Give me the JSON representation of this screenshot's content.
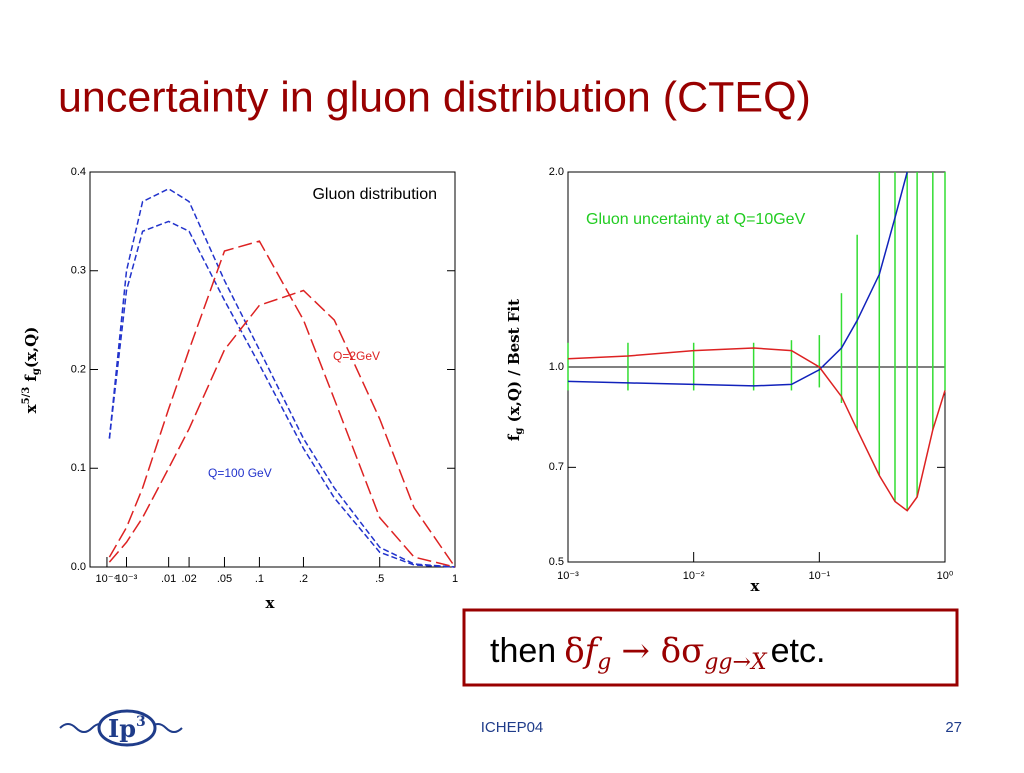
{
  "slide": {
    "title": "uncertainty in gluon distribution (CTEQ)",
    "box": {
      "then": "then",
      "delta1": "δ",
      "f": "f",
      "g": "g",
      "arrow": "→ δσ",
      "sub": "gg→X",
      "etc": "etc."
    },
    "logo": {
      "main": "Ip",
      "sup": "3"
    },
    "footer": "ICHEP04",
    "page": "27"
  },
  "chart_data": [
    {
      "type": "line",
      "xscale": "cuberoot",
      "xlabel": "x",
      "ylabel": [
        "x",
        "5/3",
        " f",
        "g",
        "(x,Q)"
      ],
      "annotations": [
        "Gluon distribution",
        "Q=2GeV",
        "Q=100 GeV"
      ],
      "x": [
        0.00015,
        0.001,
        0.003,
        0.01,
        0.02,
        0.05,
        0.1,
        0.2,
        0.3,
        0.5,
        0.7,
        1
      ],
      "xlim": [
        0,
        1
      ],
      "xticks": [
        {
          "value": 0.0001,
          "label": "10⁻⁴"
        },
        {
          "value": 0.001,
          "label": "10⁻³"
        },
        {
          "value": 0.01,
          "label": ".01"
        },
        {
          "value": 0.02,
          "label": ".02"
        },
        {
          "value": 0.05,
          "label": ".05"
        },
        {
          "value": 0.1,
          "label": ".1"
        },
        {
          "value": 0.2,
          "label": ".2"
        },
        {
          "value": 0.5,
          "label": ".5"
        },
        1
      ],
      "ylim": [
        0,
        0.4
      ],
      "yticks": [
        {
          "value": 0,
          "label": "0.0"
        },
        0.1,
        0.2,
        0.3,
        0.4
      ],
      "series": [
        {
          "name": "Q=100 GeV upper",
          "color": "#2233cc",
          "style": "dashed",
          "values": [
            0.13,
            0.3,
            0.37,
            0.383,
            0.37,
            0.29,
            0.22,
            0.13,
            0.08,
            0.02,
            0.003,
            0
          ]
        },
        {
          "name": "Q=100 GeV lower",
          "color": "#2233cc",
          "style": "dashed",
          "values": [
            0.13,
            0.28,
            0.34,
            0.35,
            0.34,
            0.27,
            0.205,
            0.12,
            0.07,
            0.015,
            0.002,
            0
          ]
        },
        {
          "name": "Q=2GeV upper",
          "color": "#dd2222",
          "style": "longdash",
          "values": [
            0.01,
            0.04,
            0.08,
            0.16,
            0.22,
            0.32,
            0.33,
            0.25,
            0.17,
            0.05,
            0.01,
            0
          ]
        },
        {
          "name": "Q=2GeV lower",
          "color": "#dd2222",
          "style": "longdash",
          "values": [
            0.005,
            0.025,
            0.05,
            0.1,
            0.14,
            0.22,
            0.265,
            0.28,
            0.25,
            0.15,
            0.06,
            0
          ]
        }
      ]
    },
    {
      "type": "line",
      "xscale": "log",
      "yscale": "log",
      "xlabel": "x",
      "ylabel": [
        "f",
        "g",
        " (x,Q) / Best Fit"
      ],
      "annotations": [
        "Gluon uncertainty at Q=10GeV"
      ],
      "x": [
        0.001,
        0.003,
        0.01,
        0.03,
        0.06,
        0.1,
        0.15,
        0.2,
        0.3,
        0.4,
        0.5,
        0.6,
        0.8,
        1
      ],
      "xlim": [
        0.001,
        1
      ],
      "xticks": [
        {
          "value": 0.001,
          "label": "10⁻³"
        },
        {
          "value": 0.01,
          "label": "10⁻²"
        },
        {
          "value": 0.1,
          "label": "10⁻¹"
        },
        {
          "value": 1,
          "label": "10⁰"
        }
      ],
      "ylim": [
        0.5,
        2.0
      ],
      "yticks": [
        0.5,
        0.7,
        {
          "value": 1,
          "label": "1.0"
        },
        {
          "value": 2,
          "label": "2.0"
        }
      ],
      "band": {
        "color": "#33dd33",
        "upper": [
          1.09,
          1.09,
          1.09,
          1.09,
          1.1,
          1.12,
          1.3,
          1.6,
          2.0,
          2.0,
          2.0,
          2.0,
          2.0,
          2.0
        ],
        "lower": [
          0.92,
          0.92,
          0.92,
          0.92,
          0.92,
          0.93,
          0.88,
          0.8,
          0.68,
          0.62,
          0.6,
          0.63,
          0.8,
          0.92
        ]
      },
      "series": [
        {
          "name": "blue",
          "color": "#1122bb",
          "style": "solid",
          "values": [
            0.95,
            0.945,
            0.94,
            0.935,
            0.94,
            0.99,
            1.07,
            1.18,
            1.39,
            1.7,
            2.0,
            null,
            null,
            null
          ]
        },
        {
          "name": "red",
          "color": "#dd2222",
          "style": "solid",
          "values": [
            1.03,
            1.04,
            1.06,
            1.07,
            1.06,
            1.0,
            0.9,
            0.8,
            0.68,
            0.62,
            0.6,
            0.63,
            0.8,
            0.92
          ]
        }
      ]
    }
  ]
}
